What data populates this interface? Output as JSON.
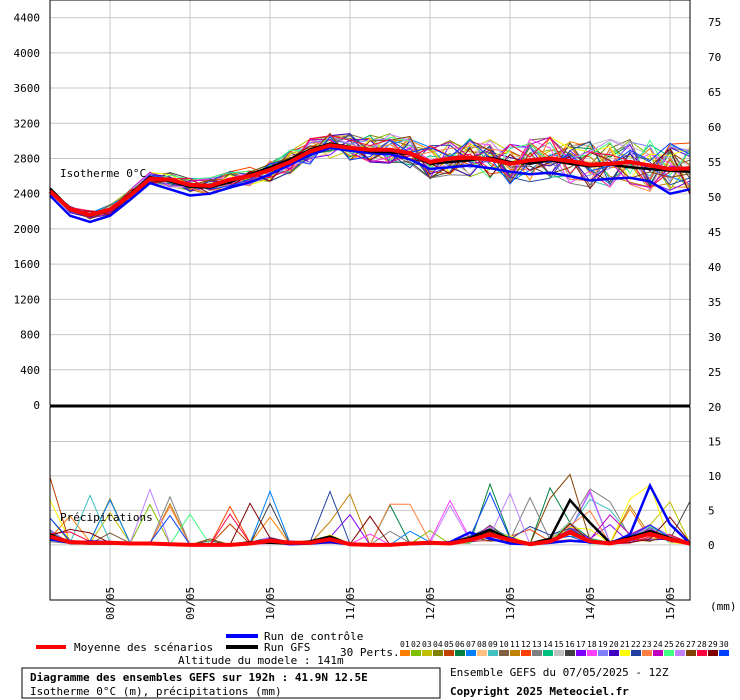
{
  "chart_data": [
    {
      "type": "line",
      "panel": "temperature",
      "annotation": "Isotherme 0°C",
      "ylim_left": [
        0,
        4600
      ],
      "yticks_left": [
        "0",
        "400",
        "800",
        "1200",
        "1600",
        "2000",
        "2400",
        "2800",
        "3200",
        "3600",
        "4000",
        "4400"
      ],
      "yticks_right": [
        "25",
        "30",
        "35",
        "40",
        "45",
        "50",
        "55",
        "60",
        "65",
        "70",
        "75"
      ],
      "xticks": [
        "08/05",
        "09/05",
        "10/05",
        "11/05",
        "12/05",
        "13/05",
        "14/05",
        "15/05"
      ],
      "x_hours": [
        0,
        6,
        12,
        18,
        24,
        30,
        36,
        42,
        48,
        54,
        60,
        66,
        72,
        78,
        84,
        90,
        96,
        102,
        108,
        114,
        120,
        126,
        132,
        138,
        144,
        150,
        156,
        162,
        168,
        174,
        180,
        186,
        192
      ],
      "mean": [
        2430,
        2220,
        2160,
        2220,
        2380,
        2570,
        2560,
        2500,
        2490,
        2560,
        2600,
        2670,
        2760,
        2880,
        2950,
        2920,
        2900,
        2900,
        2860,
        2760,
        2800,
        2810,
        2790,
        2740,
        2780,
        2800,
        2770,
        2730,
        2740,
        2760,
        2720,
        2680,
        2690
      ],
      "gfs": [
        2460,
        2230,
        2150,
        2210,
        2400,
        2590,
        2540,
        2480,
        2470,
        2530,
        2620,
        2700,
        2790,
        2900,
        2970,
        2930,
        2880,
        2870,
        2850,
        2740,
        2760,
        2780,
        2810,
        2760,
        2740,
        2780,
        2740,
        2710,
        2730,
        2700,
        2680,
        2660,
        2650
      ],
      "control": [
        2380,
        2150,
        2080,
        2150,
        2330,
        2520,
        2450,
        2380,
        2400,
        2470,
        2530,
        2620,
        2730,
        2840,
        2920,
        2890,
        2860,
        2850,
        2790,
        2680,
        2700,
        2720,
        2690,
        2650,
        2620,
        2640,
        2600,
        2550,
        2570,
        2580,
        2540,
        2400,
        2450
      ]
    },
    {
      "type": "line",
      "panel": "precipitation",
      "annotation": "Précipitations",
      "yticks_right": [
        "0",
        "5",
        "10",
        "15",
        "20"
      ],
      "unit": "(mm)",
      "ylim": [
        -8,
        20
      ],
      "mean": [
        1.2,
        0.4,
        0.3,
        0.3,
        0.2,
        0.2,
        0.1,
        0,
        0,
        0,
        0.2,
        0.6,
        0.3,
        0.3,
        0.8,
        0.1,
        0,
        0,
        0.2,
        0.3,
        0.2,
        0.7,
        1.5,
        0.7,
        0.1,
        0.5,
        1.8,
        0.5,
        0.2,
        0.8,
        1.6,
        0.8,
        0.2
      ],
      "gfs": [
        1.5,
        0.3,
        0.2,
        0.2,
        0.3,
        0.2,
        0.1,
        0,
        0,
        0,
        0.4,
        0.3,
        0.2,
        0.5,
        1.2,
        0.1,
        0,
        0,
        0.3,
        0.2,
        0.3,
        1.0,
        2.2,
        0.8,
        0.2,
        0.9,
        6.5,
        3.2,
        0.3,
        1.1,
        2.0,
        1.0,
        0.1
      ],
      "control": [
        0.8,
        0.3,
        0.5,
        0.4,
        0.2,
        0.1,
        0.1,
        0,
        0,
        0,
        0.3,
        0.5,
        0.1,
        0.2,
        0.4,
        0.1,
        0,
        0,
        0.1,
        0.2,
        0.4,
        1.8,
        0.9,
        0.2,
        0.1,
        0.3,
        0.6,
        0.4,
        0.2,
        1.5,
        8.6,
        3.0,
        0.2
      ]
    }
  ],
  "legend": {
    "mean_label": "Moyenne des scénarios",
    "control_label": "Run de contrôle",
    "gfs_label": "Run GFS",
    "perts_label": "30 Perts.",
    "model_altitude": "Altitude du modele : 141m",
    "pert_numbers": [
      "01",
      "02",
      "03",
      "04",
      "05",
      "06",
      "07",
      "08",
      "09",
      "10",
      "11",
      "12",
      "13",
      "14",
      "15",
      "16",
      "17",
      "18",
      "19",
      "20",
      "21",
      "22",
      "23",
      "24",
      "25",
      "26",
      "27",
      "28",
      "29",
      "30"
    ],
    "pert_colors": [
      "#ff8000",
      "#80c000",
      "#c0c000",
      "#808000",
      "#c04000",
      "#008040",
      "#0080ff",
      "#ffc080",
      "#40c0c0",
      "#806040",
      "#c08000",
      "#ff4000",
      "#808080",
      "#00c080",
      "#c0c0c0",
      "#404040",
      "#8000ff",
      "#ff40ff",
      "#8080ff",
      "#4000c0",
      "#ffff00",
      "#2040a0",
      "#ff8040",
      "#c000c0",
      "#40ff80",
      "#c080ff",
      "#804000",
      "#ff0040",
      "#800000",
      "#0040ff"
    ],
    "colors": {
      "mean": "#ff0000",
      "control": "#0000ff",
      "gfs": "#000000"
    }
  },
  "footer": {
    "title": "Diagramme des ensembles GEFS sur 192h : 41.9N 12.5E",
    "subtitle": "Isotherme 0°C (m), précipitations (mm)",
    "ensemble": "Ensemble GEFS du 07/05/2025 - 12Z",
    "copyright": "Copyright 2025 Meteociel.fr"
  }
}
